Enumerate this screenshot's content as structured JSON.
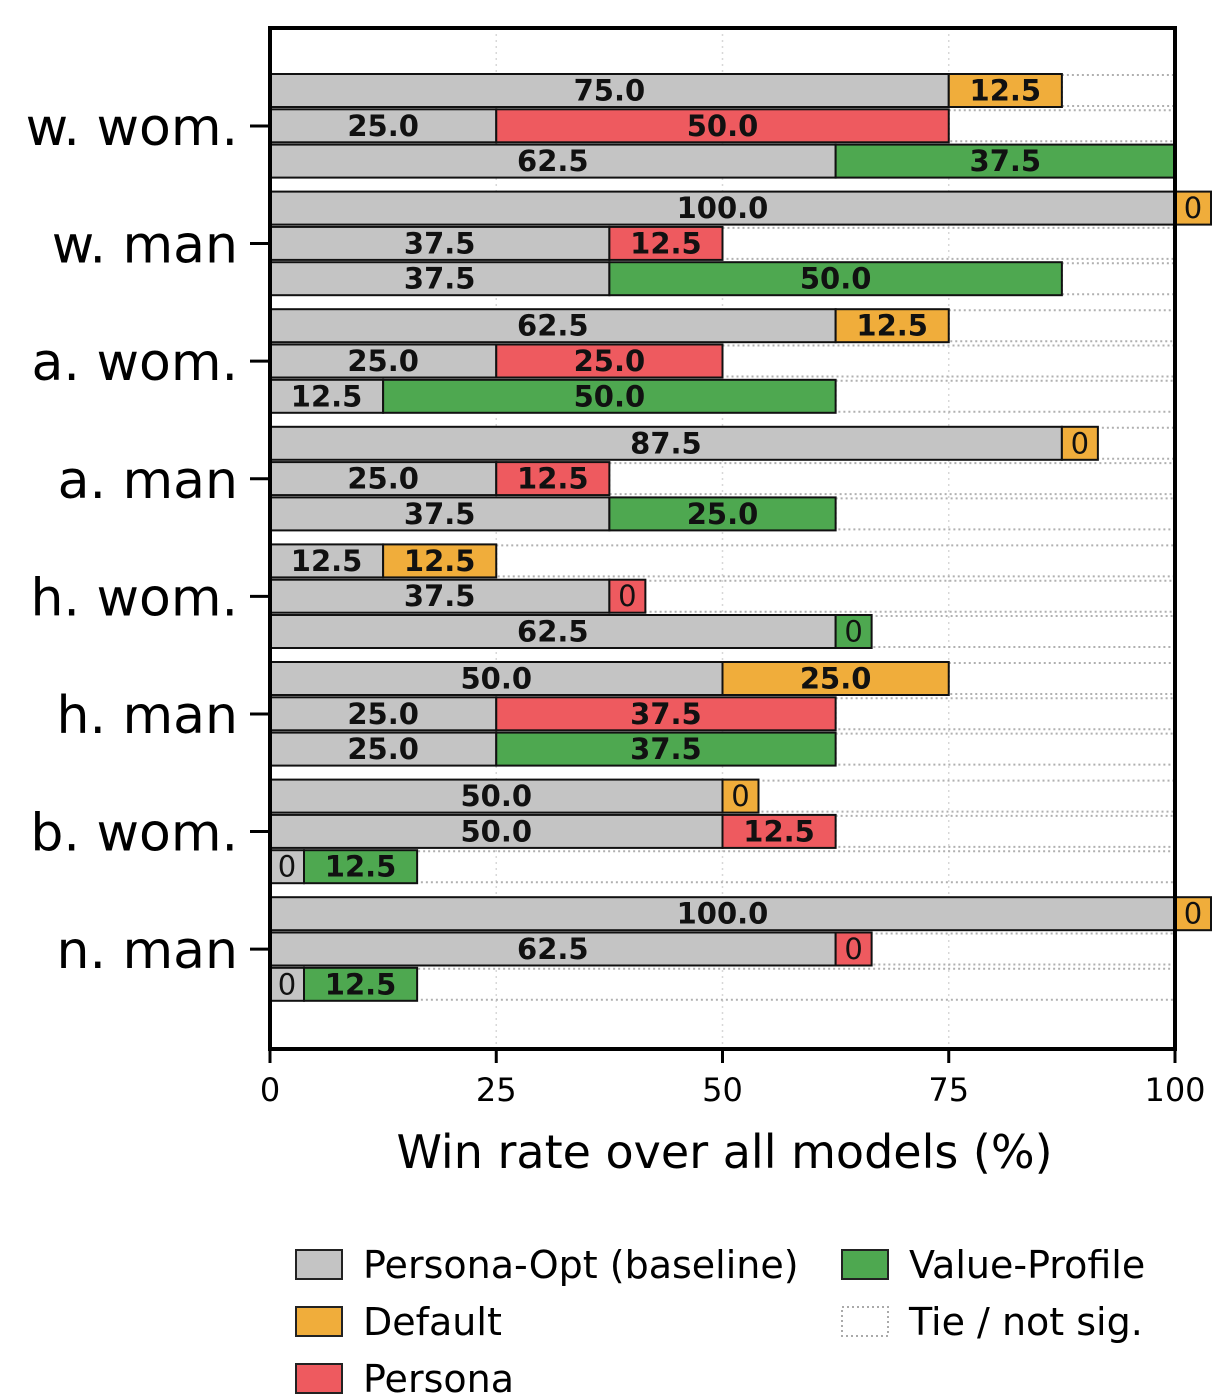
{
  "chart_data": {
    "type": "bar",
    "orientation": "horizontal-stacked",
    "xlabel": "Win rate over all models (%)",
    "xlim": [
      0,
      100
    ],
    "xticks": [
      0,
      25,
      50,
      75,
      100
    ],
    "grid": "vertical dotted",
    "categories": [
      "w. wom.",
      "w. man",
      "a. wom.",
      "a. man",
      "h. wom.",
      "h. man",
      "b. wom.",
      "n. man"
    ],
    "comparisons": [
      {
        "name": "Default",
        "color": "#F0AD3B"
      },
      {
        "name": "Persona",
        "color": "#EE5A5F"
      },
      {
        "name": "Value-Profile",
        "color": "#4EA850"
      }
    ],
    "baseline": {
      "name": "Persona-Opt (baseline)",
      "color": "#C4C4C4"
    },
    "rows": [
      {
        "category": "w. wom.",
        "comparison": "Default",
        "baseline": 75.0,
        "other": 12.5
      },
      {
        "category": "w. wom.",
        "comparison": "Persona",
        "baseline": 25.0,
        "other": 50.0
      },
      {
        "category": "w. wom.",
        "comparison": "Value-Profile",
        "baseline": 62.5,
        "other": 37.5
      },
      {
        "category": "w. man",
        "comparison": "Default",
        "baseline": 100.0,
        "other": 0
      },
      {
        "category": "w. man",
        "comparison": "Persona",
        "baseline": 37.5,
        "other": 12.5
      },
      {
        "category": "w. man",
        "comparison": "Value-Profile",
        "baseline": 37.5,
        "other": 50.0
      },
      {
        "category": "a. wom.",
        "comparison": "Default",
        "baseline": 62.5,
        "other": 12.5
      },
      {
        "category": "a. wom.",
        "comparison": "Persona",
        "baseline": 25.0,
        "other": 25.0
      },
      {
        "category": "a. wom.",
        "comparison": "Value-Profile",
        "baseline": 12.5,
        "other": 50.0
      },
      {
        "category": "a. man",
        "comparison": "Default",
        "baseline": 87.5,
        "other": 0
      },
      {
        "category": "a. man",
        "comparison": "Persona",
        "baseline": 25.0,
        "other": 12.5
      },
      {
        "category": "a. man",
        "comparison": "Value-Profile",
        "baseline": 37.5,
        "other": 25.0
      },
      {
        "category": "h. wom.",
        "comparison": "Default",
        "baseline": 12.5,
        "other": 12.5
      },
      {
        "category": "h. wom.",
        "comparison": "Persona",
        "baseline": 37.5,
        "other": 0
      },
      {
        "category": "h. wom.",
        "comparison": "Value-Profile",
        "baseline": 62.5,
        "other": 0
      },
      {
        "category": "h. man",
        "comparison": "Default",
        "baseline": 50.0,
        "other": 25.0
      },
      {
        "category": "h. man",
        "comparison": "Persona",
        "baseline": 25.0,
        "other": 37.5
      },
      {
        "category": "h. man",
        "comparison": "Value-Profile",
        "baseline": 25.0,
        "other": 37.5
      },
      {
        "category": "b. wom.",
        "comparison": "Default",
        "baseline": 50.0,
        "other": 0
      },
      {
        "category": "b. wom.",
        "comparison": "Persona",
        "baseline": 50.0,
        "other": 12.5
      },
      {
        "category": "b. wom.",
        "comparison": "Value-Profile",
        "baseline": 0,
        "other": 12.5
      },
      {
        "category": "n. man",
        "comparison": "Default",
        "baseline": 100.0,
        "other": 0
      },
      {
        "category": "n. man",
        "comparison": "Persona",
        "baseline": 62.5,
        "other": 0
      },
      {
        "category": "n. man",
        "comparison": "Value-Profile",
        "baseline": 0,
        "other": 12.5
      }
    ],
    "legend": {
      "position": "bottom",
      "items": [
        {
          "label": "Persona-Opt (baseline)",
          "color": "#C4C4C4",
          "style": "solid"
        },
        {
          "label": "Default",
          "color": "#F0AD3B",
          "style": "solid"
        },
        {
          "label": "Persona",
          "color": "#EE5A5F",
          "style": "solid"
        },
        {
          "label": "Value-Profile",
          "color": "#4EA850",
          "style": "solid"
        },
        {
          "label": "Tie / not sig.",
          "color": "#aaaaaa",
          "style": "dotted"
        }
      ]
    }
  }
}
